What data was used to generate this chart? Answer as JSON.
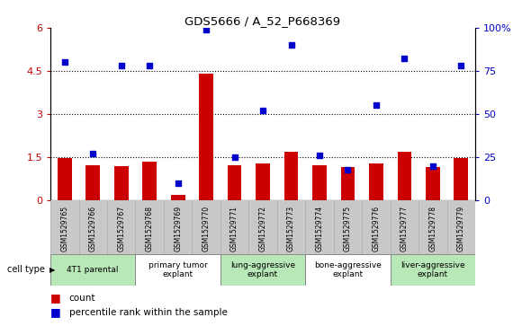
{
  "title": "GDS5666 / A_52_P668369",
  "samples": [
    "GSM1529765",
    "GSM1529766",
    "GSM1529767",
    "GSM1529768",
    "GSM1529769",
    "GSM1529770",
    "GSM1529771",
    "GSM1529772",
    "GSM1529773",
    "GSM1529774",
    "GSM1529775",
    "GSM1529776",
    "GSM1529777",
    "GSM1529778",
    "GSM1529779"
  ],
  "counts": [
    1.48,
    1.22,
    1.2,
    1.35,
    0.18,
    4.4,
    1.22,
    1.3,
    1.7,
    1.22,
    1.15,
    1.3,
    1.7,
    1.15,
    1.48
  ],
  "percentiles": [
    80,
    27,
    78,
    78,
    10,
    99,
    25,
    52,
    90,
    26,
    18,
    55,
    82,
    20,
    78
  ],
  "groups": [
    {
      "label": "4T1 parental",
      "start": 0,
      "end": 2,
      "color": "#b8e8b8"
    },
    {
      "label": "primary tumor\nexplant",
      "start": 3,
      "end": 5,
      "color": "#ffffff"
    },
    {
      "label": "lung-aggressive\nexplant",
      "start": 6,
      "end": 8,
      "color": "#b8e8b8"
    },
    {
      "label": "bone-aggressive\nexplant",
      "start": 9,
      "end": 11,
      "color": "#ffffff"
    },
    {
      "label": "liver-aggressive\nexplant",
      "start": 12,
      "end": 14,
      "color": "#b8e8b8"
    }
  ],
  "ylim_left": [
    0,
    6
  ],
  "ylim_right": [
    0,
    100
  ],
  "yticks_left": [
    0,
    1.5,
    3.0,
    4.5,
    6
  ],
  "ytick_labels_left": [
    "0",
    "1.5",
    "3",
    "4.5",
    "6"
  ],
  "yticks_right": [
    0,
    25,
    50,
    75,
    100
  ],
  "ytick_labels_right": [
    "0",
    "25",
    "50",
    "75",
    "100%"
  ],
  "bar_color": "#cc0000",
  "dot_color": "#0000cc",
  "bg_color": "#ffffff",
  "sample_bg_color": "#c8c8c8",
  "hline_y": [
    1.5,
    3.0,
    4.5
  ]
}
